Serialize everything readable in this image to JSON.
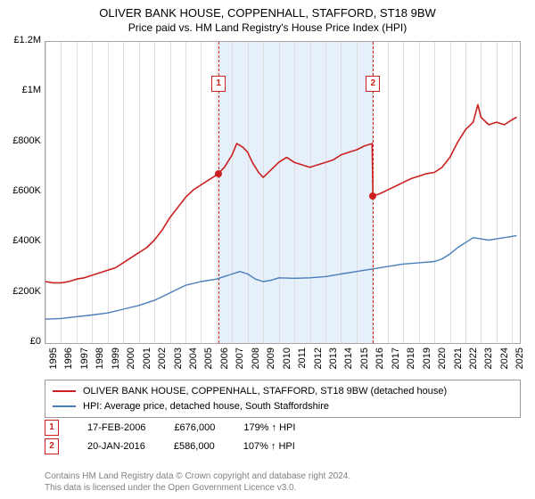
{
  "title": "OLIVER BANK HOUSE, COPPENHALL, STAFFORD, ST18 9BW",
  "subtitle": "Price paid vs. HM Land Registry's House Price Index (HPI)",
  "chart": {
    "type": "line",
    "background_color": "#ffffff",
    "plot_border_color": "#a6a6a6",
    "grid_color": "#dedede",
    "band_color": "#e6f0fa",
    "x_range": [
      1995,
      2025.5
    ],
    "y_range": [
      0,
      1200000
    ],
    "y_ticks": [
      0,
      200000,
      400000,
      600000,
      800000,
      1000000,
      1200000
    ],
    "y_tick_labels": [
      "£0",
      "£200K",
      "£400K",
      "£600K",
      "£800K",
      "£1M",
      "£1.2M"
    ],
    "y_label_fontsize": 11,
    "x_ticks": [
      1995,
      1996,
      1997,
      1998,
      1999,
      2000,
      2001,
      2002,
      2003,
      2004,
      2005,
      2006,
      2007,
      2008,
      2009,
      2010,
      2011,
      2012,
      2013,
      2014,
      2015,
      2016,
      2017,
      2018,
      2019,
      2020,
      2021,
      2022,
      2023,
      2024,
      2025
    ],
    "x_label_fontsize": 11,
    "x_label_rotation": -90,
    "band": {
      "x_start": 2006.13,
      "x_end": 2016.06
    },
    "series": [
      {
        "id": "subject",
        "label": "OLIVER BANK HOUSE, COPPENHALL, STAFFORD, ST18 9BW (detached house)",
        "color": "#cc2020",
        "line_width": 1.6,
        "points": [
          [
            1995.0,
            245000
          ],
          [
            1995.5,
            240000
          ],
          [
            1996.0,
            240000
          ],
          [
            1996.5,
            245000
          ],
          [
            1997.0,
            255000
          ],
          [
            1997.5,
            260000
          ],
          [
            1998.0,
            270000
          ],
          [
            1998.5,
            280000
          ],
          [
            1999.0,
            290000
          ],
          [
            1999.5,
            300000
          ],
          [
            2000.0,
            320000
          ],
          [
            2000.5,
            340000
          ],
          [
            2001.0,
            360000
          ],
          [
            2001.5,
            380000
          ],
          [
            2002.0,
            410000
          ],
          [
            2002.5,
            450000
          ],
          [
            2003.0,
            500000
          ],
          [
            2003.5,
            540000
          ],
          [
            2004.0,
            580000
          ],
          [
            2004.5,
            610000
          ],
          [
            2005.0,
            630000
          ],
          [
            2005.5,
            650000
          ],
          [
            2006.0,
            670000
          ],
          [
            2006.13,
            676000
          ],
          [
            2006.5,
            700000
          ],
          [
            2007.0,
            750000
          ],
          [
            2007.3,
            795000
          ],
          [
            2007.7,
            780000
          ],
          [
            2008.0,
            760000
          ],
          [
            2008.3,
            720000
          ],
          [
            2008.7,
            680000
          ],
          [
            2009.0,
            660000
          ],
          [
            2009.5,
            690000
          ],
          [
            2010.0,
            720000
          ],
          [
            2010.5,
            740000
          ],
          [
            2011.0,
            720000
          ],
          [
            2011.5,
            710000
          ],
          [
            2012.0,
            700000
          ],
          [
            2012.5,
            710000
          ],
          [
            2013.0,
            720000
          ],
          [
            2013.5,
            730000
          ],
          [
            2014.0,
            750000
          ],
          [
            2014.5,
            760000
          ],
          [
            2015.0,
            770000
          ],
          [
            2015.5,
            785000
          ],
          [
            2016.0,
            795000
          ],
          [
            2016.06,
            586000
          ],
          [
            2016.5,
            595000
          ],
          [
            2017.0,
            610000
          ],
          [
            2017.5,
            625000
          ],
          [
            2018.0,
            640000
          ],
          [
            2018.5,
            655000
          ],
          [
            2019.0,
            665000
          ],
          [
            2019.5,
            675000
          ],
          [
            2020.0,
            680000
          ],
          [
            2020.5,
            700000
          ],
          [
            2021.0,
            740000
          ],
          [
            2021.5,
            800000
          ],
          [
            2022.0,
            850000
          ],
          [
            2022.5,
            880000
          ],
          [
            2022.8,
            950000
          ],
          [
            2023.0,
            900000
          ],
          [
            2023.5,
            870000
          ],
          [
            2024.0,
            880000
          ],
          [
            2024.5,
            870000
          ],
          [
            2025.0,
            890000
          ],
          [
            2025.3,
            900000
          ]
        ]
      },
      {
        "id": "hpi",
        "label": "HPI: Average price, detached house, South Staffordshire",
        "color": "#4a7ebb",
        "line_width": 1.4,
        "points": [
          [
            1995.0,
            95000
          ],
          [
            1996.0,
            98000
          ],
          [
            1997.0,
            105000
          ],
          [
            1998.0,
            112000
          ],
          [
            1999.0,
            120000
          ],
          [
            2000.0,
            135000
          ],
          [
            2001.0,
            150000
          ],
          [
            2002.0,
            170000
          ],
          [
            2003.0,
            200000
          ],
          [
            2004.0,
            230000
          ],
          [
            2005.0,
            245000
          ],
          [
            2006.0,
            255000
          ],
          [
            2007.0,
            275000
          ],
          [
            2007.5,
            285000
          ],
          [
            2008.0,
            275000
          ],
          [
            2008.5,
            255000
          ],
          [
            2009.0,
            245000
          ],
          [
            2009.5,
            250000
          ],
          [
            2010.0,
            260000
          ],
          [
            2011.0,
            258000
          ],
          [
            2012.0,
            260000
          ],
          [
            2013.0,
            265000
          ],
          [
            2014.0,
            275000
          ],
          [
            2015.0,
            285000
          ],
          [
            2016.0,
            295000
          ],
          [
            2017.0,
            305000
          ],
          [
            2018.0,
            315000
          ],
          [
            2019.0,
            320000
          ],
          [
            2020.0,
            325000
          ],
          [
            2020.5,
            335000
          ],
          [
            2021.0,
            355000
          ],
          [
            2021.5,
            380000
          ],
          [
            2022.0,
            400000
          ],
          [
            2022.5,
            420000
          ],
          [
            2023.0,
            415000
          ],
          [
            2023.5,
            410000
          ],
          [
            2024.0,
            415000
          ],
          [
            2024.5,
            420000
          ],
          [
            2025.0,
            425000
          ],
          [
            2025.3,
            428000
          ]
        ]
      }
    ],
    "sale_markers": [
      {
        "n": "1",
        "x": 2006.13,
        "y": 676000
      },
      {
        "n": "2",
        "x": 2016.06,
        "y": 586000
      }
    ],
    "marker_box_color": "#cc2020",
    "marker_vline_color": "#cc2020",
    "marker_vline_dash": "4,3"
  },
  "legend": {
    "border_color": "#999999",
    "fontsize": 11,
    "rows": [
      {
        "color": "#cc2020",
        "text": "OLIVER BANK HOUSE, COPPENHALL, STAFFORD, ST18 9BW (detached house)"
      },
      {
        "color": "#4a7ebb",
        "text": "HPI: Average price, detached house, South Staffordshire"
      }
    ]
  },
  "sales_table": {
    "fontsize": 11,
    "rows": [
      {
        "n": "1",
        "date": "17-FEB-2006",
        "price": "£676,000",
        "ratio": "179% ↑ HPI"
      },
      {
        "n": "2",
        "date": "20-JAN-2016",
        "price": "£586,000",
        "ratio": "107% ↑ HPI"
      }
    ]
  },
  "license": {
    "line1": "Contains HM Land Registry data © Crown copyright and database right 2024.",
    "line2": "This data is licensed under the Open Government Licence v3.0.",
    "color": "#808080",
    "fontsize": 10
  }
}
